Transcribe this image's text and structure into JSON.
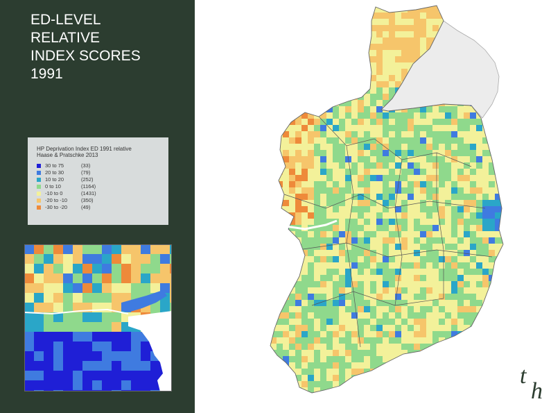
{
  "title": {
    "line1": "ED-LEVEL",
    "line2": "RELATIVE",
    "line3": "INDEX SCORES",
    "line4": "1991"
  },
  "legend": {
    "title_line1": "HP Deprivation Index ED 1991 relative",
    "title_line2": "Haase & Pratschke 2013",
    "items": [
      {
        "range": "30 to  75",
        "count": "(33)",
        "color": "#1f1fd6"
      },
      {
        "range": "20 to  30",
        "count": "(79)",
        "color": "#3f7be0"
      },
      {
        "range": "10 to  20",
        "count": "(252)",
        "color": "#2aa6c8"
      },
      {
        "range": "0 to  10",
        "count": "(1164)",
        "color": "#8fd98c"
      },
      {
        "range": "-10 to   0",
        "count": "(1431)",
        "color": "#f3f19a"
      },
      {
        "range": "-20 to -10",
        "count": "(350)",
        "color": "#f6c56b"
      },
      {
        "range": "-30 to -20",
        "count": "(49)",
        "color": "#ee8a3a"
      }
    ]
  },
  "logo": {
    "letter1": "t",
    "letter2": "h"
  },
  "colors": {
    "panel_bg": "#2c3d30",
    "northern_ireland": "#ececec",
    "border_lines": "#555555"
  }
}
